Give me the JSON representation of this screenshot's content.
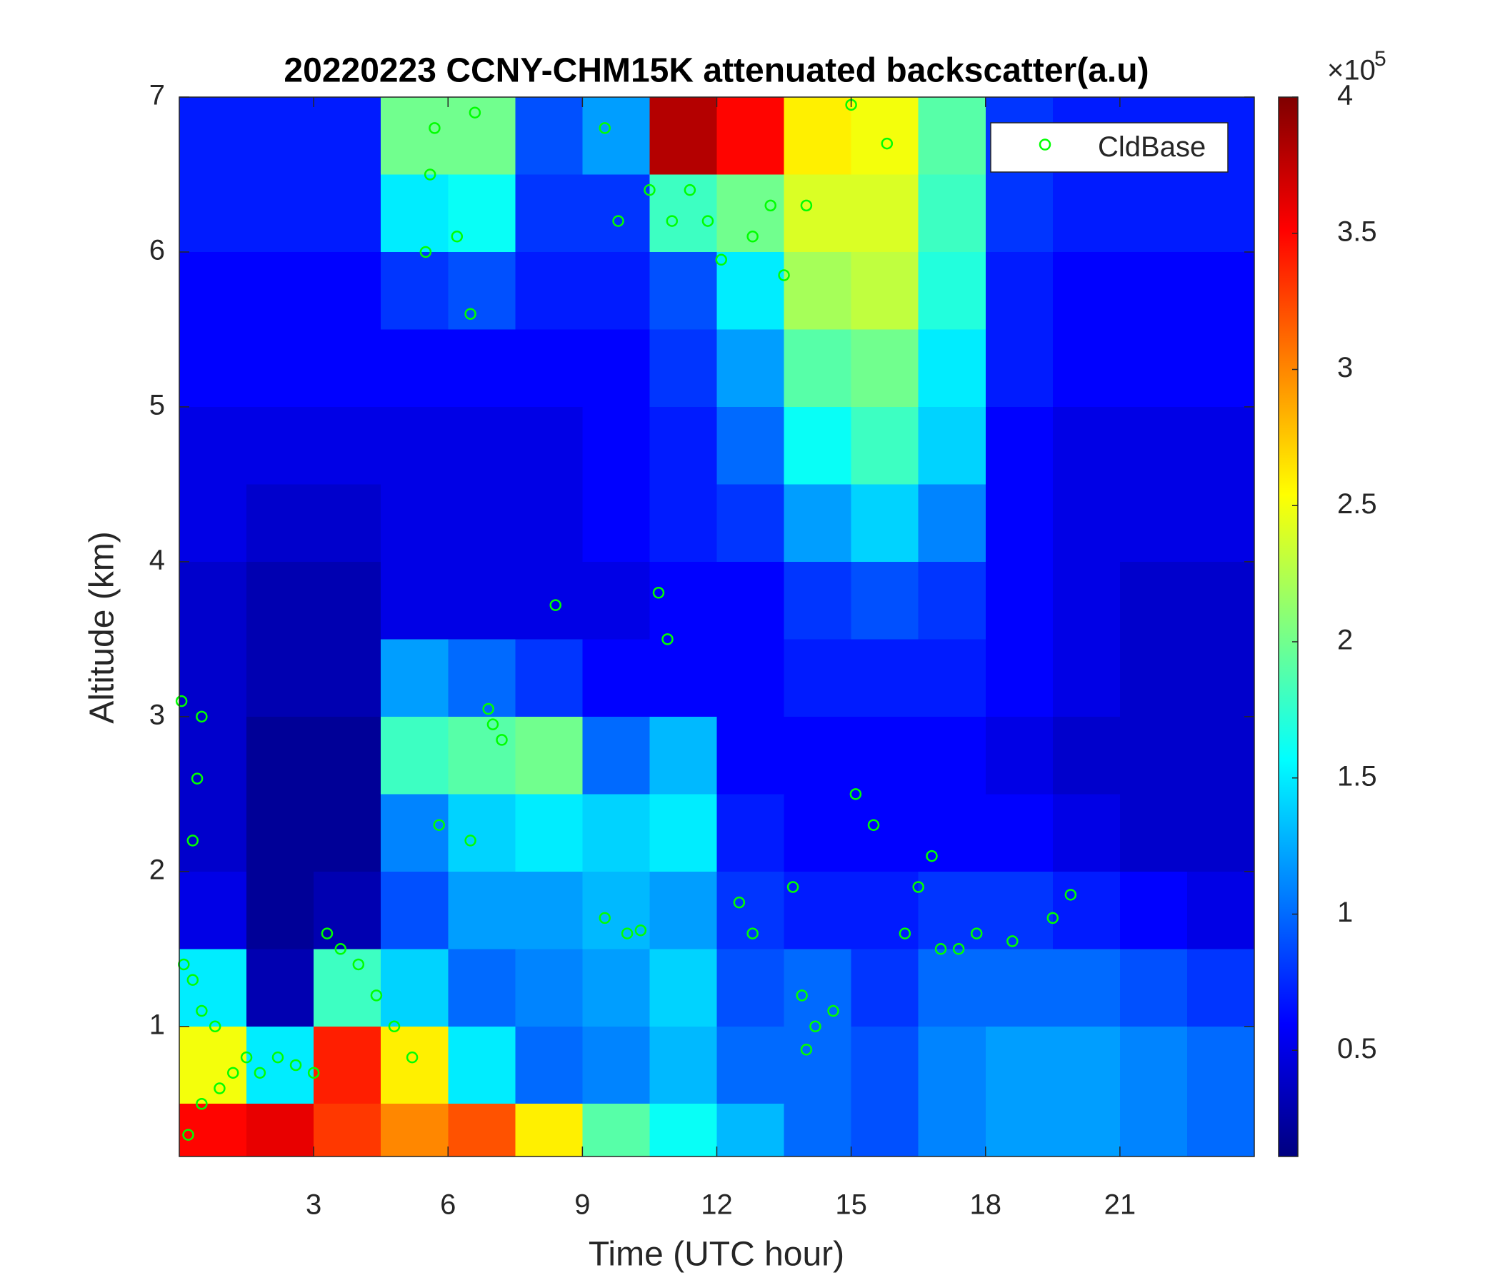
{
  "chart_data": {
    "type": "heatmap",
    "title": "20220223 CCNY-CHM15K attenuated backscatter(a.u)",
    "xlabel": "Time (UTC hour)",
    "ylabel": "Altitude (km)",
    "colormap": "jet",
    "x_edges": [
      0,
      1.5,
      3,
      4.5,
      6,
      7.5,
      9,
      10.5,
      12,
      13.5,
      15,
      16.5,
      18,
      19.5,
      21,
      22.5,
      24
    ],
    "y_edges": [
      0.16,
      0.5,
      1,
      1.5,
      2,
      2.5,
      3,
      3.5,
      4,
      4.5,
      5,
      5.5,
      6,
      6.5,
      7
    ],
    "z": [
      [
        3.5,
        3.6,
        3.3,
        3.0,
        3.2,
        2.6,
        1.9,
        1.6,
        1.3,
        1.0,
        0.9,
        1.1,
        1.2,
        1.2,
        1.1,
        1.0
      ],
      [
        2.5,
        1.5,
        3.4,
        2.6,
        1.5,
        1.0,
        1.1,
        1.3,
        1.0,
        1.0,
        0.9,
        1.1,
        1.2,
        1.2,
        1.1,
        1.0
      ],
      [
        1.5,
        0.3,
        1.8,
        1.4,
        1.0,
        1.1,
        1.2,
        1.4,
        0.9,
        1.0,
        0.8,
        1.0,
        1.0,
        1.0,
        0.9,
        0.8
      ],
      [
        0.5,
        0.2,
        0.3,
        0.9,
        1.2,
        1.2,
        1.3,
        1.2,
        0.8,
        0.7,
        0.7,
        0.8,
        0.8,
        0.7,
        0.6,
        0.5
      ],
      [
        0.4,
        0.2,
        0.2,
        1.1,
        1.4,
        1.5,
        1.4,
        1.5,
        0.7,
        0.6,
        0.6,
        0.6,
        0.6,
        0.5,
        0.4,
        0.4
      ],
      [
        0.4,
        0.2,
        0.2,
        1.8,
        1.9,
        2.0,
        1.0,
        1.3,
        0.6,
        0.6,
        0.6,
        0.6,
        0.5,
        0.4,
        0.4,
        0.4
      ],
      [
        0.4,
        0.3,
        0.3,
        1.2,
        1.0,
        0.8,
        0.6,
        0.6,
        0.6,
        0.7,
        0.7,
        0.7,
        0.6,
        0.5,
        0.4,
        0.4
      ],
      [
        0.4,
        0.3,
        0.3,
        0.5,
        0.5,
        0.5,
        0.5,
        0.6,
        0.6,
        0.8,
        0.9,
        0.8,
        0.6,
        0.5,
        0.4,
        0.4
      ],
      [
        0.5,
        0.4,
        0.4,
        0.5,
        0.5,
        0.5,
        0.6,
        0.7,
        0.8,
        1.2,
        1.4,
        1.1,
        0.6,
        0.5,
        0.5,
        0.5
      ],
      [
        0.5,
        0.5,
        0.5,
        0.5,
        0.5,
        0.5,
        0.6,
        0.7,
        1.0,
        1.6,
        1.8,
        1.4,
        0.6,
        0.5,
        0.5,
        0.5
      ],
      [
        0.6,
        0.6,
        0.6,
        0.6,
        0.6,
        0.6,
        0.6,
        0.8,
        1.2,
        1.9,
        2.0,
        1.5,
        0.7,
        0.6,
        0.6,
        0.6
      ],
      [
        0.6,
        0.6,
        0.6,
        0.8,
        0.9,
        0.7,
        0.7,
        0.9,
        1.5,
        2.2,
        2.3,
        1.7,
        0.7,
        0.6,
        0.6,
        0.6
      ],
      [
        0.7,
        0.7,
        0.7,
        1.5,
        1.6,
        0.8,
        0.8,
        1.8,
        2.0,
        2.4,
        2.4,
        1.8,
        0.8,
        0.7,
        0.7,
        0.7
      ],
      [
        0.7,
        0.7,
        0.7,
        2.0,
        2.0,
        0.9,
        1.2,
        3.8,
        3.5,
        2.6,
        2.5,
        1.9,
        0.8,
        0.7,
        0.7,
        0.7
      ]
    ],
    "colorbar": {
      "lim": [
        0.11,
        4
      ],
      "ticks": [
        0.5,
        1,
        1.5,
        2,
        2.5,
        3,
        3.5,
        4
      ],
      "multiplier": "×10",
      "exponent": "5"
    },
    "xlim": [
      0,
      24
    ],
    "ylim": [
      0.16,
      7
    ],
    "xticks": [
      3,
      6,
      9,
      12,
      15,
      18,
      21
    ],
    "yticks": [
      1,
      2,
      3,
      4,
      5,
      6,
      7
    ],
    "legend": "upper right",
    "series": [
      {
        "name": "CldBase",
        "color": "#00ff00",
        "x": [
          0.1,
          0.3,
          0.5,
          0.8,
          0.2,
          0.5,
          0.9,
          1.2,
          1.5,
          1.8,
          2.2,
          2.6,
          3.0,
          3.3,
          3.6,
          4.0,
          4.4,
          4.8,
          5.2,
          0.5,
          0.4,
          0.3,
          0.05,
          5.5,
          5.6,
          5.7,
          6.2,
          6.5,
          6.6,
          7.0,
          7.2,
          6.9,
          8.4,
          5.8,
          6.5,
          9.5,
          9.8,
          10.5,
          11.0,
          11.4,
          11.8,
          12.1,
          12.8,
          13.2,
          13.5,
          14.0,
          15.0,
          15.8,
          10.7,
          10.9,
          9.5,
          10.0,
          10.3,
          12.5,
          12.8,
          13.7,
          13.9,
          14.2,
          14.6,
          14.0,
          15.1,
          15.5,
          16.2,
          16.5,
          16.8,
          17.0,
          17.4,
          17.8,
          18.6,
          19.5,
          19.9
        ],
        "y": [
          1.4,
          1.3,
          1.1,
          1.0,
          0.3,
          0.5,
          0.6,
          0.7,
          0.8,
          0.7,
          0.8,
          0.75,
          0.7,
          1.6,
          1.5,
          1.4,
          1.2,
          1.0,
          0.8,
          3.0,
          2.6,
          2.2,
          3.1,
          6.0,
          6.5,
          6.8,
          6.1,
          5.6,
          6.9,
          2.95,
          2.85,
          3.05,
          3.72,
          2.3,
          2.2,
          6.8,
          6.2,
          6.4,
          6.2,
          6.4,
          6.2,
          5.95,
          6.1,
          6.3,
          5.85,
          6.3,
          6.95,
          6.7,
          3.8,
          3.5,
          1.7,
          1.6,
          1.62,
          1.8,
          1.6,
          1.9,
          1.2,
          1.0,
          1.1,
          0.85,
          2.5,
          2.3,
          1.6,
          1.9,
          2.1,
          1.5,
          1.5,
          1.6,
          1.55,
          1.7,
          1.85
        ]
      }
    ]
  }
}
